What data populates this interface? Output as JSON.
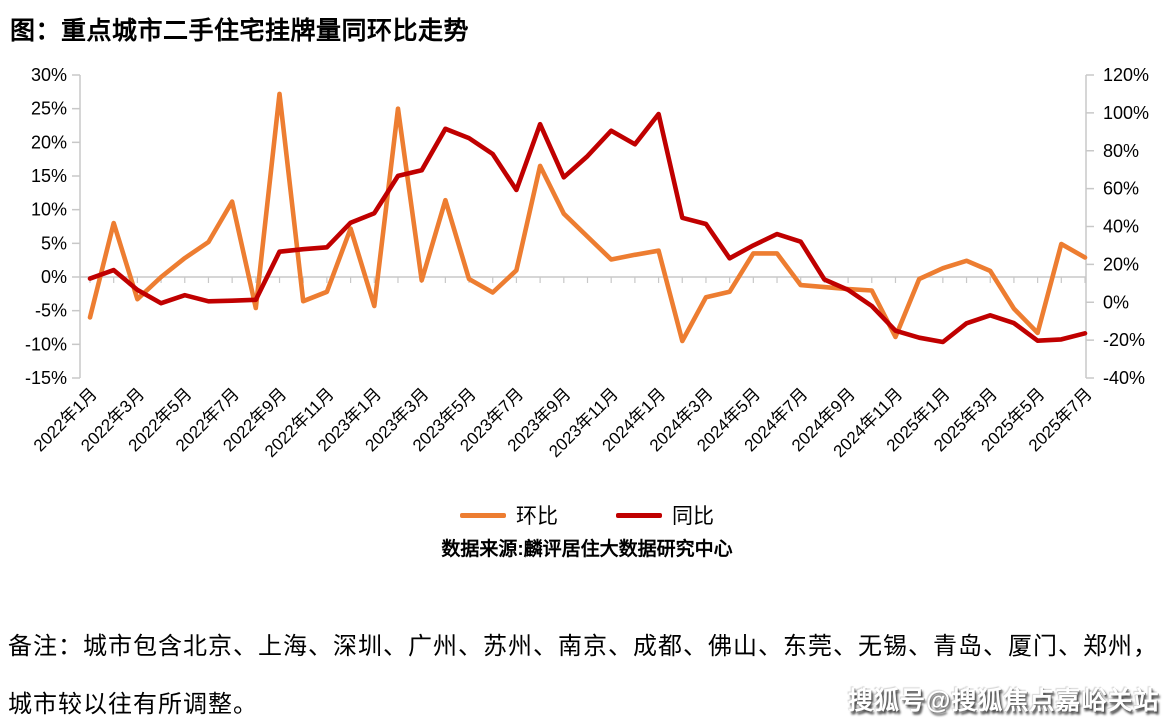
{
  "title": "图：重点城市二手住宅挂牌量同环比走势",
  "legend": {
    "huanbi": "环比",
    "tongbi": "同比"
  },
  "source": "数据来源:麟评居住大数据研究中心",
  "note_line1": "备注：城市包含北京、上海、深圳、广州、苏州、南京、成都、佛山、东莞、无锡、青岛、厦门、郑州，",
  "note_line2": "城市较以往有所调整。",
  "watermark": "搜狐号@搜狐焦点嘉峪关站",
  "colors": {
    "huanbi": "#ED7D31",
    "tongbi": "#C00000",
    "axis": "#C8C8C8",
    "text": "#000000",
    "background": "#FFFFFF"
  },
  "chart_data": {
    "type": "line",
    "title": "重点城市二手住宅挂牌量同环比走势",
    "x": [
      "2022年1月",
      "2022年2月",
      "2022年3月",
      "2022年4月",
      "2022年5月",
      "2022年6月",
      "2022年7月",
      "2022年8月",
      "2022年9月",
      "2022年10月",
      "2022年11月",
      "2022年12月",
      "2023年1月",
      "2023年2月",
      "2023年3月",
      "2023年4月",
      "2023年5月",
      "2023年6月",
      "2023年7月",
      "2023年8月",
      "2023年9月",
      "2023年10月",
      "2023年11月",
      "2023年12月",
      "2024年1月",
      "2024年2月",
      "2024年3月",
      "2024年4月",
      "2024年5月",
      "2024年6月",
      "2024年7月",
      "2024年8月",
      "2024年9月",
      "2024年10月",
      "2024年11月",
      "2024年12月",
      "2025年1月",
      "2025年2月",
      "2025年3月",
      "2025年4月",
      "2025年5月",
      "2025年6月",
      "2025年7月"
    ],
    "x_label_every": 2,
    "series": [
      {
        "name": "环比",
        "axis": "left",
        "color": "#ED7D31",
        "values": [
          -6.0,
          8.0,
          -3.3,
          0.0,
          2.8,
          5.2,
          11.2,
          -4.6,
          27.2,
          -3.6,
          -2.2,
          7.2,
          -4.3,
          25.0,
          -0.5,
          11.4,
          -0.3,
          -2.3,
          1.0,
          16.5,
          9.4,
          6.0,
          2.6,
          3.3,
          3.9,
          -9.5,
          -3.0,
          -2.2,
          3.5,
          3.5,
          -1.2,
          -1.5,
          -1.8,
          -2.0,
          -8.9,
          -0.3,
          1.3,
          2.4,
          0.9,
          -4.7,
          -8.3,
          4.9,
          2.9
        ]
      },
      {
        "name": "同比",
        "axis": "right",
        "color": "#C00000",
        "values": [
          12.5,
          17.0,
          6.5,
          -0.5,
          3.7,
          0.5,
          0.8,
          1.3,
          26.7,
          28.0,
          29.0,
          42.0,
          47.0,
          66.7,
          69.7,
          91.6,
          86.7,
          78.3,
          59.3,
          94.0,
          66.0,
          77.2,
          90.6,
          83.4,
          99.4,
          44.6,
          41.3,
          23.2,
          30.0,
          36.0,
          32.0,
          12.0,
          6.5,
          -2.0,
          -15.0,
          -18.7,
          -21.0,
          -11.1,
          -6.9,
          -11.0,
          -20.3,
          -19.6,
          -16.4
        ]
      }
    ],
    "left_axis": {
      "min": -15,
      "max": 30,
      "step": 5,
      "unit": "%"
    },
    "right_axis": {
      "min": -40,
      "max": 120,
      "step": 20,
      "unit": "%"
    },
    "grid": false,
    "legend_position": "bottom"
  }
}
